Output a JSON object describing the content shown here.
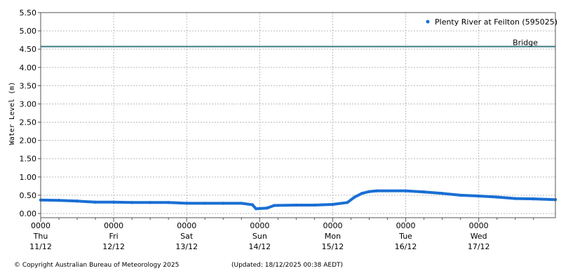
{
  "chart_data": {
    "type": "line",
    "ylabel": "Water Level (m)",
    "ylim": [
      0,
      5.5
    ],
    "yticks": [
      "0.00",
      "0.50",
      "1.00",
      "1.50",
      "2.00",
      "2.50",
      "3.00",
      "3.50",
      "4.00",
      "4.50",
      "5.00",
      "5.50"
    ],
    "xlim_days": [
      0,
      7.05
    ],
    "x_ticks": [
      {
        "time": "0000",
        "day": "Thu",
        "date": "11/12"
      },
      {
        "time": "0000",
        "day": "Fri",
        "date": "12/12"
      },
      {
        "time": "0000",
        "day": "Sat",
        "date": "13/12"
      },
      {
        "time": "0000",
        "day": "Sun",
        "date": "14/12"
      },
      {
        "time": "0000",
        "day": "Mon",
        "date": "15/12"
      },
      {
        "time": "0000",
        "day": "Tue",
        "date": "16/12"
      },
      {
        "time": "0000",
        "day": "Wed",
        "date": "17/12"
      }
    ],
    "grid": true,
    "legend_position": "top-right",
    "series": [
      {
        "name": "Plenty River at Feilton (595025)",
        "color": "#1a6fd4",
        "marker": "dot",
        "points": [
          [
            0.0,
            0.37
          ],
          [
            0.25,
            0.36
          ],
          [
            0.5,
            0.34
          ],
          [
            0.75,
            0.31
          ],
          [
            1.0,
            0.31
          ],
          [
            1.25,
            0.3
          ],
          [
            1.5,
            0.3
          ],
          [
            1.75,
            0.3
          ],
          [
            2.0,
            0.28
          ],
          [
            2.25,
            0.28
          ],
          [
            2.5,
            0.28
          ],
          [
            2.75,
            0.28
          ],
          [
            2.9,
            0.24
          ],
          [
            2.95,
            0.13
          ],
          [
            3.1,
            0.15
          ],
          [
            3.2,
            0.22
          ],
          [
            3.5,
            0.23
          ],
          [
            3.75,
            0.23
          ],
          [
            4.0,
            0.25
          ],
          [
            4.2,
            0.3
          ],
          [
            4.3,
            0.45
          ],
          [
            4.4,
            0.55
          ],
          [
            4.5,
            0.6
          ],
          [
            4.6,
            0.62
          ],
          [
            5.0,
            0.62
          ],
          [
            5.25,
            0.59
          ],
          [
            5.5,
            0.55
          ],
          [
            5.75,
            0.5
          ],
          [
            6.0,
            0.48
          ],
          [
            6.25,
            0.45
          ],
          [
            6.5,
            0.41
          ],
          [
            6.75,
            0.4
          ],
          [
            7.05,
            0.38
          ]
        ]
      }
    ],
    "reference_lines": [
      {
        "label": "Bridge",
        "value": 4.57,
        "color": "#3b7a86"
      }
    ]
  },
  "footer": {
    "copyright": "© Copyright Australian Bureau of Meteorology 2025",
    "updated": "(Updated: 18/12/2025 00:38 AEDT)"
  }
}
